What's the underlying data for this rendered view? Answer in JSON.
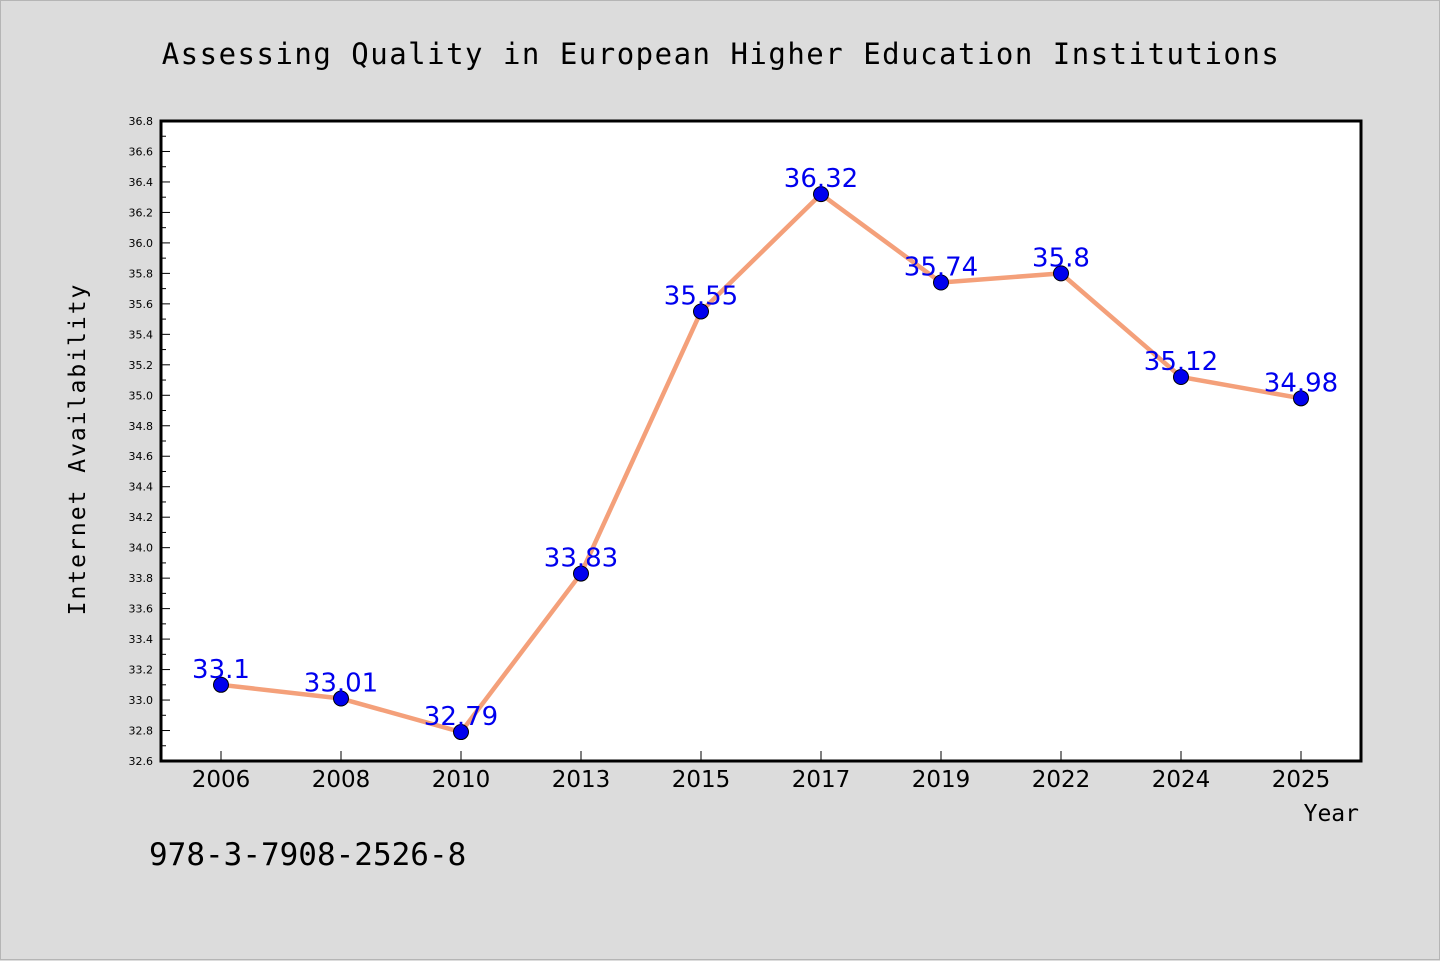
{
  "chart_data": {
    "type": "line",
    "title": "Assessing Quality in European Higher Education Institutions",
    "xlabel": "Year",
    "ylabel": "Internet Availability",
    "categories": [
      "2006",
      "2008",
      "2010",
      "2013",
      "2015",
      "2017",
      "2019",
      "2022",
      "2024",
      "2025"
    ],
    "series": [
      {
        "values": [
          33.1,
          33.01,
          32.79,
          33.83,
          35.55,
          36.32,
          35.74,
          35.8,
          35.12,
          34.98
        ],
        "data_labels": [
          "33.1",
          "33.01",
          "32.79",
          "33.83",
          "35.55",
          "36.32",
          "35.74",
          "35.8",
          "35.12",
          "34.98"
        ],
        "line_color": "#f4a07a",
        "marker_color": "#0000ee",
        "label_color": "#0000ee"
      }
    ],
    "ylim": [
      32.6,
      36.8
    ],
    "y_ticks": [
      "32.6",
      "32.8",
      "33.0",
      "33.2",
      "33.4",
      "33.6",
      "33.8",
      "34.0",
      "34.2",
      "34.4",
      "34.6",
      "34.8",
      "35.0",
      "35.2",
      "35.4",
      "35.6",
      "35.8",
      "36.0",
      "36.2",
      "36.4",
      "36.6",
      "36.8"
    ],
    "grid": false,
    "legend": "none",
    "background_color": "#dcdcdc",
    "plot_background_color": "#ffffff"
  },
  "annotation": {
    "isbn": "978-3-7908-2526-8"
  }
}
